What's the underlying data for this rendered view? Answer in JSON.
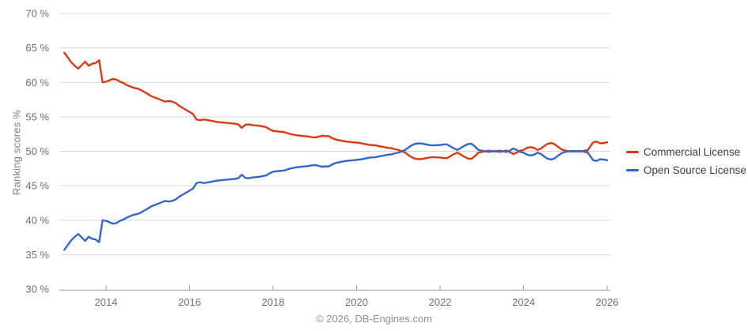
{
  "chart_data": {
    "type": "line",
    "title": "",
    "xlabel": "",
    "ylabel": "Ranking scores %",
    "ylim": [
      30,
      70
    ],
    "grid": "horizontal",
    "legend_position": "right",
    "y_tick_values": [
      70,
      65,
      60,
      55,
      50,
      45,
      40,
      35,
      30
    ],
    "y_tick_labels": [
      "70 %",
      "65 %",
      "60 %",
      "55 %",
      "50 %",
      "45 %",
      "40 %",
      "35 %",
      "30 %"
    ],
    "x_tick_years": [
      2014,
      2016,
      2018,
      2020,
      2022,
      2024,
      2026
    ],
    "x_tick_labels": [
      "2014",
      "2016",
      "2018",
      "2020",
      "2022",
      "2024",
      "2026"
    ],
    "x_start_year": 2013.0,
    "x_step_years": 0.0833333,
    "series": [
      {
        "name": "Commercial License",
        "color": "#dc3912",
        "values": [
          64.3,
          63.6,
          62.9,
          62.4,
          62.0,
          62.5,
          63.0,
          62.4,
          62.7,
          62.8,
          63.2,
          60.0,
          60.1,
          60.3,
          60.5,
          60.4,
          60.1,
          59.9,
          59.6,
          59.4,
          59.2,
          59.1,
          58.9,
          58.6,
          58.3,
          58.0,
          57.8,
          57.6,
          57.4,
          57.2,
          57.3,
          57.2,
          57.0,
          56.6,
          56.3,
          56.0,
          55.7,
          55.4,
          54.6,
          54.5,
          54.6,
          54.55,
          54.45,
          54.35,
          54.25,
          54.2,
          54.15,
          54.1,
          54.05,
          54.0,
          53.9,
          53.4,
          53.85,
          53.9,
          53.8,
          53.75,
          53.7,
          53.6,
          53.5,
          53.2,
          52.95,
          52.9,
          52.85,
          52.8,
          52.65,
          52.5,
          52.4,
          52.3,
          52.25,
          52.2,
          52.15,
          52.05,
          52.0,
          52.1,
          52.25,
          52.2,
          52.2,
          51.9,
          51.7,
          51.6,
          51.5,
          51.4,
          51.35,
          51.3,
          51.25,
          51.2,
          51.1,
          51.0,
          50.9,
          50.9,
          50.8,
          50.7,
          50.6,
          50.5,
          50.45,
          50.3,
          50.2,
          50.0,
          49.8,
          49.4,
          49.1,
          48.9,
          48.85,
          48.9,
          49.0,
          49.1,
          49.15,
          49.1,
          49.1,
          49.0,
          49.0,
          49.3,
          49.6,
          49.8,
          49.5,
          49.2,
          48.95,
          48.9,
          49.3,
          49.8,
          49.9,
          50.0,
          50.1,
          49.95,
          50.05,
          49.9,
          50.0,
          50.1,
          49.9,
          49.6,
          49.8,
          50.1,
          50.2,
          50.5,
          50.6,
          50.5,
          50.2,
          50.4,
          50.8,
          51.1,
          51.2,
          51.0,
          50.6,
          50.25,
          50.1,
          50.0,
          50.05,
          49.95,
          50.05,
          50.0,
          49.85,
          50.6,
          51.3,
          51.4,
          51.15,
          51.2,
          51.3
        ]
      },
      {
        "name": "Open Source License",
        "color": "#3366cc",
        "values": [
          35.7,
          36.4,
          37.1,
          37.6,
          38.0,
          37.5,
          37.0,
          37.6,
          37.3,
          37.2,
          36.8,
          40.0,
          39.9,
          39.7,
          39.5,
          39.6,
          39.9,
          40.1,
          40.4,
          40.6,
          40.8,
          40.9,
          41.1,
          41.4,
          41.7,
          42.0,
          42.2,
          42.4,
          42.6,
          42.8,
          42.7,
          42.8,
          43.0,
          43.4,
          43.7,
          44.0,
          44.3,
          44.6,
          45.4,
          45.5,
          45.4,
          45.45,
          45.55,
          45.65,
          45.75,
          45.8,
          45.85,
          45.9,
          45.95,
          46.0,
          46.1,
          46.6,
          46.15,
          46.1,
          46.2,
          46.25,
          46.3,
          46.4,
          46.5,
          46.8,
          47.05,
          47.1,
          47.15,
          47.2,
          47.35,
          47.5,
          47.6,
          47.7,
          47.75,
          47.8,
          47.85,
          47.95,
          48.0,
          47.9,
          47.75,
          47.8,
          47.8,
          48.1,
          48.3,
          48.4,
          48.5,
          48.6,
          48.65,
          48.7,
          48.75,
          48.8,
          48.9,
          49.0,
          49.1,
          49.1,
          49.2,
          49.3,
          49.4,
          49.5,
          49.55,
          49.7,
          49.8,
          50.0,
          50.2,
          50.6,
          50.9,
          51.1,
          51.15,
          51.1,
          51.0,
          50.9,
          50.85,
          50.9,
          50.9,
          51.0,
          51.0,
          50.7,
          50.4,
          50.2,
          50.5,
          50.8,
          51.05,
          51.1,
          50.7,
          50.2,
          50.1,
          50.0,
          49.9,
          50.05,
          49.95,
          50.1,
          50.0,
          49.9,
          50.1,
          50.4,
          50.2,
          49.9,
          49.8,
          49.5,
          49.4,
          49.5,
          49.8,
          49.6,
          49.2,
          48.9,
          48.8,
          49.0,
          49.4,
          49.75,
          49.9,
          50.0,
          49.95,
          50.05,
          49.95,
          50.0,
          50.15,
          49.4,
          48.7,
          48.6,
          48.85,
          48.8,
          48.7
        ]
      }
    ]
  },
  "legend": {
    "items": [
      {
        "label": "Commercial License",
        "color": "#dc3912"
      },
      {
        "label": "Open Source License",
        "color": "#3366cc"
      }
    ]
  },
  "footer": {
    "copyright": "© 2026, DB-Engines.com"
  },
  "colors": {
    "gridline": "#d9d9d9",
    "axis_line": "#a6a6a6",
    "tick_mark": "#9e9e9e",
    "tick_label": "#6f6f6f",
    "background": "#ffffff"
  }
}
